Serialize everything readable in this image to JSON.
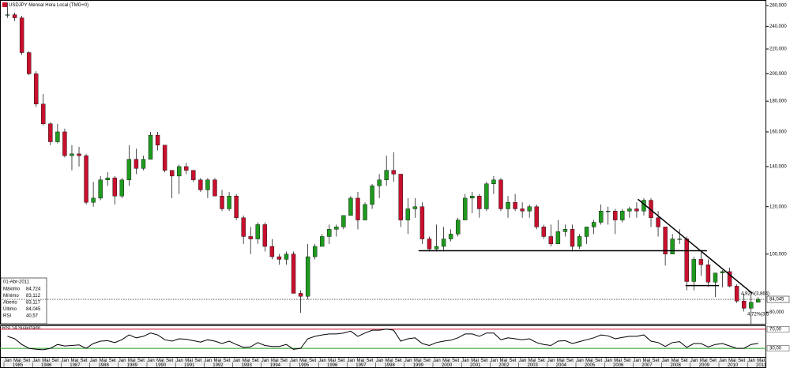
{
  "chart_data": {
    "type": "candlestick",
    "title": "USDJPY Mensal Hora Local (TMG+0)",
    "log_scale": true,
    "up_color": "#1f9a1f",
    "down_color": "#c8102e",
    "ylim": [
      76.5,
      265.6
    ],
    "yticks": [
      {
        "value": 80,
        "label": "80,000"
      },
      {
        "value": 100,
        "label": "100,000"
      },
      {
        "value": 120,
        "label": "120,000"
      },
      {
        "value": 140,
        "label": "140,000"
      },
      {
        "value": 160,
        "label": "160,000"
      },
      {
        "value": 180,
        "label": "180,000"
      },
      {
        "value": 200,
        "label": "200,000"
      },
      {
        "value": 220,
        "label": "220,000"
      },
      {
        "value": 240,
        "label": "240,000"
      },
      {
        "value": 260,
        "label": "260,000"
      }
    ],
    "x": [
      "1985-01",
      "1985-04",
      "1985-07",
      "1985-10",
      "1986-01",
      "1986-04",
      "1986-07",
      "1986-10",
      "1987-01",
      "1987-04",
      "1987-07",
      "1987-10",
      "1988-01",
      "1988-04",
      "1988-07",
      "1988-10",
      "1989-01",
      "1989-04",
      "1989-07",
      "1989-10",
      "1990-01",
      "1990-04",
      "1990-07",
      "1990-10",
      "1991-01",
      "1991-04",
      "1991-07",
      "1991-10",
      "1992-01",
      "1992-04",
      "1992-07",
      "1992-10",
      "1993-01",
      "1993-04",
      "1993-07",
      "1993-10",
      "1994-01",
      "1994-04",
      "1994-07",
      "1994-10",
      "1995-01",
      "1995-04",
      "1995-07",
      "1995-10",
      "1996-01",
      "1996-04",
      "1996-07",
      "1996-10",
      "1997-01",
      "1997-04",
      "1997-07",
      "1997-10",
      "1998-01",
      "1998-04",
      "1998-07",
      "1998-10",
      "1999-01",
      "1999-04",
      "1999-07",
      "1999-10",
      "2000-01",
      "2000-04",
      "2000-07",
      "2000-10",
      "2001-01",
      "2001-04",
      "2001-07",
      "2001-10",
      "2002-01",
      "2002-04",
      "2002-07",
      "2002-10",
      "2003-01",
      "2003-04",
      "2003-07",
      "2003-10",
      "2004-01",
      "2004-04",
      "2004-07",
      "2004-10",
      "2005-01",
      "2005-04",
      "2005-07",
      "2005-10",
      "2006-01",
      "2006-04",
      "2006-07",
      "2006-10",
      "2007-01",
      "2007-04",
      "2007-07",
      "2007-10",
      "2008-01",
      "2008-04",
      "2008-07",
      "2008-10",
      "2009-01",
      "2009-04",
      "2009-07",
      "2009-10",
      "2010-01",
      "2010-04",
      "2010-07",
      "2010-10",
      "2011-01",
      "2011-04"
    ],
    "ohlc": [
      [
        251,
        263,
        248,
        251
      ],
      [
        251,
        253,
        245,
        248
      ],
      [
        248,
        250,
        215,
        217
      ],
      [
        217,
        218,
        199,
        200
      ],
      [
        200,
        202,
        176,
        178
      ],
      [
        178,
        185,
        164,
        165
      ],
      [
        165,
        166,
        152,
        154
      ],
      [
        154,
        165,
        153,
        160
      ],
      [
        160,
        162,
        145,
        146
      ],
      [
        146,
        152,
        138,
        147
      ],
      [
        147,
        151,
        140,
        146
      ],
      [
        146,
        147,
        121,
        122
      ],
      [
        122,
        132,
        120,
        124
      ],
      [
        124,
        135,
        123,
        133
      ],
      [
        133,
        137,
        130,
        134
      ],
      [
        134,
        135,
        121,
        125
      ],
      [
        125,
        134,
        124,
        133
      ],
      [
        133,
        152,
        130,
        144
      ],
      [
        144,
        150,
        136,
        139
      ],
      [
        139,
        146,
        138,
        144
      ],
      [
        144,
        160,
        144,
        158
      ],
      [
        158,
        160,
        149,
        152
      ],
      [
        152,
        152,
        137,
        138
      ],
      [
        138,
        138,
        124,
        135
      ],
      [
        135,
        141,
        126,
        140
      ],
      [
        140,
        142,
        136,
        138
      ],
      [
        138,
        138,
        132,
        133
      ],
      [
        133,
        134,
        127,
        128
      ],
      [
        128,
        134,
        124,
        133
      ],
      [
        133,
        134,
        125,
        125
      ],
      [
        125,
        128,
        118,
        119
      ],
      [
        119,
        127,
        118,
        125
      ],
      [
        125,
        126,
        114,
        115
      ],
      [
        115,
        116,
        104,
        107
      ],
      [
        107,
        111,
        100,
        106
      ],
      [
        106,
        113,
        104,
        112
      ],
      [
        112,
        113,
        101,
        103
      ],
      [
        103,
        106,
        98,
        99
      ],
      [
        99,
        100,
        96,
        98
      ],
      [
        98,
        101,
        96,
        100
      ],
      [
        100,
        101,
        86,
        86
      ],
      [
        86,
        87,
        79.8,
        85
      ],
      [
        85,
        104,
        84,
        99
      ],
      [
        99,
        104,
        98,
        103
      ],
      [
        103,
        108,
        103,
        107
      ],
      [
        107,
        112,
        104,
        110
      ],
      [
        110,
        112,
        107,
        111
      ],
      [
        111,
        116,
        110,
        116
      ],
      [
        116,
        125,
        116,
        124
      ],
      [
        124,
        127,
        110,
        114
      ],
      [
        114,
        122,
        114,
        121
      ],
      [
        121,
        131,
        119,
        130
      ],
      [
        130,
        136,
        124,
        133
      ],
      [
        133,
        146,
        130,
        138
      ],
      [
        138,
        148,
        132,
        136
      ],
      [
        136,
        136,
        111,
        114
      ],
      [
        114,
        124,
        108,
        119
      ],
      [
        119,
        124,
        115,
        120
      ],
      [
        120,
        122,
        104,
        106
      ],
      [
        106,
        107,
        101,
        102
      ],
      [
        102,
        112,
        101,
        103
      ],
      [
        103,
        111,
        101,
        106
      ],
      [
        106,
        110,
        105,
        108
      ],
      [
        108,
        115,
        107,
        114
      ],
      [
        114,
        126,
        114,
        124
      ],
      [
        124,
        127,
        117,
        125
      ],
      [
        125,
        126,
        115,
        119
      ],
      [
        119,
        132,
        118,
        131
      ],
      [
        131,
        135,
        126,
        133
      ],
      [
        133,
        134,
        118,
        119
      ],
      [
        119,
        125,
        115,
        122
      ],
      [
        122,
        126,
        118,
        119
      ],
      [
        119,
        122,
        115,
        118
      ],
      [
        118,
        121,
        115,
        120
      ],
      [
        120,
        121,
        110,
        111
      ],
      [
        111,
        112,
        106,
        107
      ],
      [
        107,
        112,
        103,
        104
      ],
      [
        104,
        114,
        104,
        109
      ],
      [
        109,
        112,
        107,
        110
      ],
      [
        110,
        112,
        101,
        103
      ],
      [
        103,
        108,
        102,
        107
      ],
      [
        107,
        111,
        104,
        111
      ],
      [
        111,
        114,
        108,
        113
      ],
      [
        113,
        121,
        112,
        118
      ],
      [
        118,
        120,
        112,
        118
      ],
      [
        118,
        119,
        108,
        114
      ],
      [
        114,
        119,
        113,
        118
      ],
      [
        118,
        120,
        115,
        119
      ],
      [
        119,
        122,
        115,
        118
      ],
      [
        118,
        124,
        116,
        123
      ],
      [
        123,
        124,
        111,
        115
      ],
      [
        115,
        118,
        107,
        111
      ],
      [
        111,
        111,
        95.7,
        100
      ],
      [
        100,
        108,
        100,
        106
      ],
      [
        106,
        110,
        104,
        106
      ],
      [
        106,
        107,
        87,
        90
      ],
      [
        90,
        99,
        87,
        98
      ],
      [
        98,
        101,
        92,
        96
      ],
      [
        96,
        98,
        88.2,
        89.8
      ],
      [
        89.8,
        93,
        84.8,
        93
      ],
      [
        93,
        94,
        88,
        93.5
      ],
      [
        93.5,
        94.9,
        88,
        88.4
      ],
      [
        88.4,
        89,
        82.9,
        83.5
      ],
      [
        83.5,
        85.9,
        80.2,
        81.2
      ],
      [
        81.2,
        85.9,
        76.3,
        83.1
      ],
      [
        83.117,
        84.724,
        83.112,
        84.045
      ]
    ],
    "last_price": {
      "value": 84.045,
      "label": "84,045"
    },
    "trendlines": [
      {
        "x": [
          "1999-07",
          "2009-08"
        ],
        "y": [
          101.3,
          101.3
        ]
      },
      {
        "x": [
          "2007-03",
          "2011-03"
        ],
        "y": [
          123.5,
          86
        ]
      },
      {
        "x": [
          "2008-11",
          "2010-01"
        ],
        "y": [
          88.6,
          88.6
        ]
      }
    ],
    "annotations": [
      "4,92%(3,864)",
      "4,72%(3,5"
    ],
    "rsi": {
      "name": "RSI 14 Suavizado",
      "color": "#000000",
      "ylim": [
        12,
        78
      ],
      "yticks": [
        {
          "value": 30,
          "label": "30,00"
        },
        {
          "value": 70,
          "label": "70,00"
        }
      ],
      "values": [
        55,
        50,
        38,
        30,
        28,
        27,
        30,
        38,
        35,
        36,
        37,
        30,
        40,
        45,
        46,
        42,
        48,
        58,
        52,
        55,
        62,
        58,
        48,
        45,
        50,
        49,
        46,
        43,
        48,
        45,
        40,
        45,
        38,
        32,
        33,
        42,
        36,
        34,
        34,
        38,
        28,
        30,
        50,
        55,
        58,
        60,
        60,
        62,
        66,
        55,
        62,
        68,
        68,
        70,
        68,
        45,
        50,
        52,
        40,
        36,
        42,
        45,
        47,
        52,
        60,
        60,
        55,
        62,
        62,
        48,
        52,
        50,
        48,
        50,
        42,
        38,
        36,
        45,
        46,
        40,
        44,
        48,
        52,
        58,
        56,
        50,
        53,
        55,
        55,
        58,
        45,
        42,
        34,
        42,
        44,
        32,
        40,
        40,
        33,
        38,
        40,
        35,
        30,
        30,
        38,
        40.57
      ]
    },
    "x_axis": {
      "months": [
        "Jan",
        "Mai",
        "Set"
      ],
      "years": [
        "1985",
        "1986",
        "1987",
        "1988",
        "1989",
        "1990",
        "1991",
        "1992",
        "1993",
        "1994",
        "1995",
        "1996",
        "1997",
        "1998",
        "1999",
        "2000",
        "2001",
        "2002",
        "2003",
        "2004",
        "2005",
        "2006",
        "2007",
        "2008",
        "2009",
        "2010",
        "2011"
      ]
    },
    "info": {
      "date": "01-Abr-2011",
      "rows": [
        [
          "Máximo",
          "84,724"
        ],
        [
          "Mínimo",
          "83,112"
        ],
        [
          "Aberto",
          "83,117"
        ],
        [
          "Último",
          "84,045"
        ],
        [
          "RSI",
          "40,57"
        ]
      ]
    }
  }
}
